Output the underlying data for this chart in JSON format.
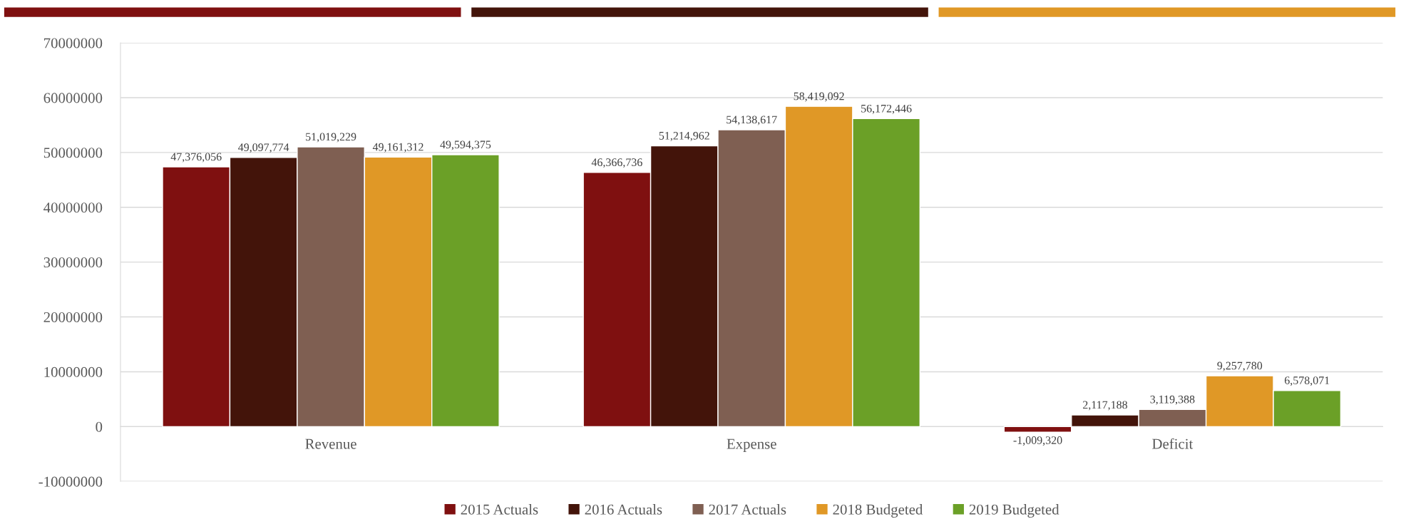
{
  "chart_data": {
    "type": "bar",
    "categories": [
      "Revenue",
      "Expense",
      "Deficit"
    ],
    "series": [
      {
        "name": "2015 Actuals",
        "color": "#7f1010",
        "values": [
          47376056,
          46366736,
          -1009320
        ],
        "value_labels": [
          "47,376,056",
          "46,366,736",
          "-1,009,320"
        ]
      },
      {
        "name": "2016 Actuals",
        "color": "#43140a",
        "values": [
          49097774,
          51214962,
          2117188
        ],
        "value_labels": [
          "49,097,774",
          "51,214,962",
          "2,117,188"
        ]
      },
      {
        "name": "2017 Actuals",
        "color": "#7f5f52",
        "values": [
          51019229,
          54138617,
          3119388
        ],
        "value_labels": [
          "51,019,229",
          "54,138,617",
          "3,119,388"
        ]
      },
      {
        "name": "2018 Budgeted",
        "color": "#e09826",
        "values": [
          49161312,
          58419092,
          9257780
        ],
        "value_labels": [
          "49,161,312",
          "58,419,092",
          "9,257,780"
        ]
      },
      {
        "name": "2019 Budgeted",
        "color": "#6ba027",
        "values": [
          49594375,
          56172446,
          6578071
        ],
        "value_labels": [
          "49,594,375",
          "56,172,446",
          "6,578,071"
        ]
      }
    ],
    "ylim": [
      -10000000,
      70000000
    ],
    "yticks": [
      -10000000,
      0,
      10000000,
      20000000,
      30000000,
      40000000,
      50000000,
      60000000,
      70000000
    ],
    "grid": "y",
    "legend": "bottom"
  }
}
